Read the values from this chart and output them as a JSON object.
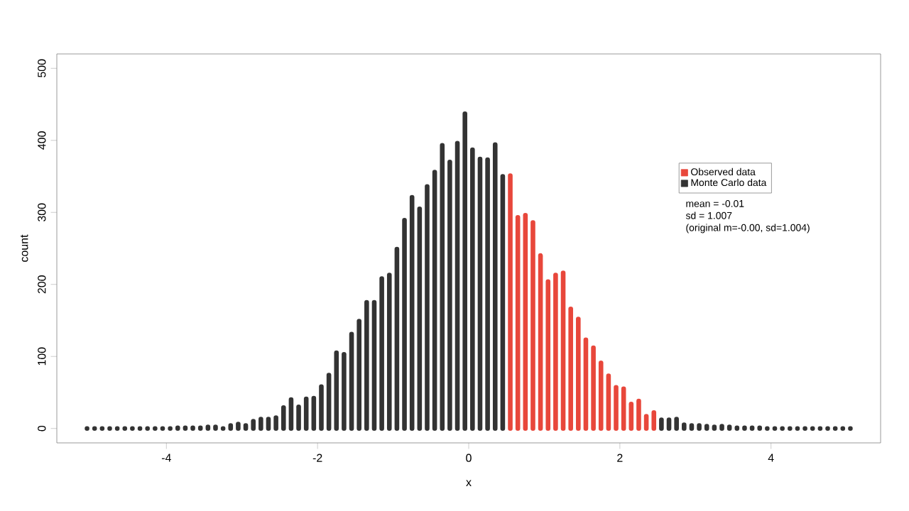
{
  "chart_data": {
    "type": "bar",
    "xlabel": "x",
    "ylabel": "count",
    "x": [
      -5.05,
      -4.95,
      -4.85,
      -4.75,
      -4.65,
      -4.55,
      -4.45,
      -4.35,
      -4.25,
      -4.15,
      -4.05,
      -3.95,
      -3.85,
      -3.75,
      -3.65,
      -3.55,
      -3.45,
      -3.35,
      -3.25,
      -3.15,
      -3.05,
      -2.95,
      -2.85,
      -2.75,
      -2.65,
      -2.55,
      -2.45,
      -2.35,
      -2.25,
      -2.15,
      -2.05,
      -1.95,
      -1.85,
      -1.75,
      -1.65,
      -1.55,
      -1.45,
      -1.35,
      -1.25,
      -1.15,
      -1.05,
      -0.95,
      -0.85,
      -0.75,
      -0.65,
      -0.55,
      -0.45,
      -0.35,
      -0.25,
      -0.15,
      -0.05,
      0.05,
      0.15,
      0.25,
      0.35,
      0.45,
      0.55,
      0.65,
      0.75,
      0.85,
      0.95,
      1.05,
      1.15,
      1.25,
      1.35,
      1.45,
      1.55,
      1.65,
      1.75,
      1.85,
      1.95,
      2.05,
      2.15,
      2.25,
      2.35,
      2.45,
      2.55,
      2.65,
      2.75,
      2.85,
      2.95,
      3.05,
      3.15,
      3.25,
      3.35,
      3.45,
      3.55,
      3.65,
      3.75,
      3.85,
      3.95,
      4.05,
      4.15,
      4.25,
      4.35,
      4.45,
      4.55,
      4.65,
      4.75,
      4.85,
      4.95,
      5.05
    ],
    "series": [
      {
        "name": "Observed data",
        "color": "#e8473b",
        "values": [
          null,
          null,
          null,
          null,
          null,
          null,
          null,
          null,
          null,
          null,
          null,
          null,
          null,
          null,
          null,
          null,
          null,
          null,
          null,
          null,
          null,
          null,
          null,
          null,
          null,
          null,
          null,
          null,
          null,
          null,
          null,
          null,
          null,
          null,
          null,
          null,
          null,
          null,
          null,
          null,
          null,
          null,
          null,
          null,
          null,
          null,
          null,
          null,
          null,
          null,
          null,
          null,
          null,
          null,
          null,
          null,
          351,
          293,
          296,
          286,
          240,
          204,
          213,
          216,
          166,
          152,
          123,
          112,
          91,
          73,
          57,
          55,
          34,
          38,
          17,
          22,
          null,
          null,
          null,
          null,
          null,
          null,
          null,
          null,
          null,
          null,
          null,
          null,
          null,
          null,
          null,
          null,
          null,
          null,
          null,
          null,
          null,
          null,
          null,
          null,
          null,
          null
        ]
      },
      {
        "name": "Monte Carlo data",
        "color": "#333333",
        "values": [
          0,
          0,
          0,
          0,
          0,
          0,
          0,
          0,
          0,
          0,
          0,
          0,
          1,
          1,
          1,
          1,
          2,
          2,
          0,
          4,
          6,
          4,
          10,
          13,
          13,
          15,
          29,
          40,
          30,
          41,
          42,
          58,
          74,
          105,
          103,
          131,
          149,
          175,
          175,
          208,
          213,
          249,
          289,
          321,
          305,
          336,
          356,
          393,
          370,
          396,
          437,
          387,
          374,
          373,
          394,
          350,
          null,
          null,
          null,
          null,
          null,
          null,
          null,
          null,
          null,
          null,
          null,
          null,
          null,
          null,
          null,
          null,
          null,
          null,
          null,
          null,
          12,
          12,
          13,
          5,
          4,
          4,
          3,
          2,
          3,
          2,
          1,
          1,
          1,
          1,
          0,
          0,
          0,
          0,
          0,
          0,
          0,
          0,
          0,
          0,
          0,
          0
        ]
      }
    ],
    "xlim": [
      -5.45,
      5.45
    ],
    "ylim": [
      -20,
      520
    ],
    "xticks": [
      -4,
      -2,
      0,
      2,
      4
    ],
    "yticks": [
      0,
      100,
      200,
      300,
      400,
      500
    ],
    "grid": false,
    "legend": "right",
    "annotations": [
      "mean = -0.01",
      "sd = 1.007",
      "(original m=-0.00, sd=1.004)"
    ]
  }
}
